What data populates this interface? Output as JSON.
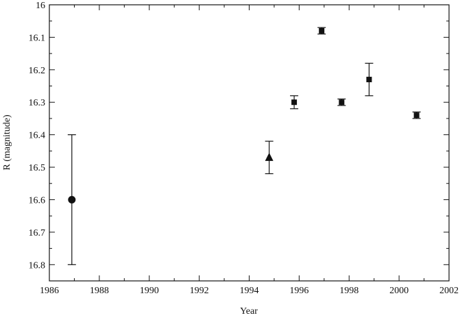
{
  "chart_data": {
    "type": "scatter",
    "x_label": "Year",
    "y_label": "R (magnitude)",
    "xlim": [
      1986,
      2002
    ],
    "xticks": [
      1986,
      1988,
      1990,
      1992,
      1994,
      1996,
      1998,
      2000,
      2002
    ],
    "ylim": [
      16,
      16.85
    ],
    "y_inverted": true,
    "yticks": [
      16,
      16.1,
      16.2,
      16.3,
      16.4,
      16.5,
      16.6,
      16.7,
      16.8
    ],
    "color": "#111111",
    "series": [
      {
        "marker": "circle",
        "x": [
          1986.9
        ],
        "values": [
          16.6
        ],
        "errors": [
          0.2
        ]
      },
      {
        "marker": "triangle",
        "x": [
          1994.8
        ],
        "values": [
          16.47
        ],
        "errors": [
          0.05
        ]
      },
      {
        "marker": "square",
        "x": [
          1995.8,
          1996.9,
          1997.7,
          1998.8,
          2000.7
        ],
        "values": [
          16.3,
          16.08,
          16.3,
          16.23,
          16.34
        ],
        "errors": [
          0.02,
          0.01,
          0.01,
          0.05,
          0.01
        ]
      }
    ]
  }
}
